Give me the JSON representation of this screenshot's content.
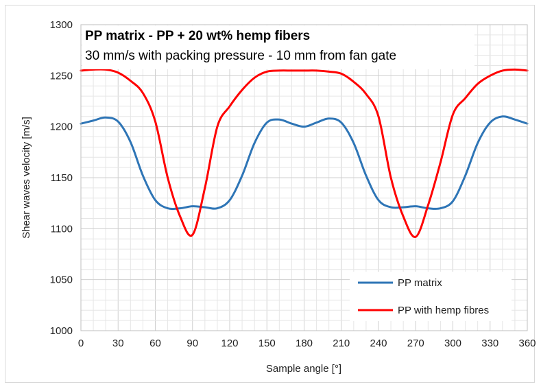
{
  "chart_data": {
    "type": "line",
    "title": "PP matrix - PP + 20 wt% hemp fibers",
    "subtitle": "30 mm/s with packing pressure - 10 mm from fan gate",
    "xlabel": "Sample angle [°]",
    "ylabel": "Shear waves velocity [m/s]",
    "xlim": [
      0,
      360
    ],
    "ylim": [
      1000,
      1300
    ],
    "xticks": [
      0,
      30,
      60,
      90,
      120,
      150,
      180,
      210,
      240,
      270,
      300,
      330,
      360
    ],
    "yticks": [
      1000,
      1050,
      1100,
      1150,
      1200,
      1250,
      1300
    ],
    "grid": true,
    "legend_position": "bottom-right",
    "series": [
      {
        "name": "PP matrix",
        "color": "#2e75b6",
        "x": [
          0,
          10,
          20,
          30,
          40,
          50,
          60,
          70,
          80,
          90,
          100,
          110,
          120,
          130,
          140,
          150,
          160,
          170,
          180,
          190,
          200,
          210,
          220,
          230,
          240,
          250,
          260,
          270,
          280,
          290,
          300,
          310,
          320,
          330,
          340,
          350,
          360
        ],
        "y": [
          1203,
          1206,
          1209,
          1205,
          1185,
          1152,
          1128,
          1120,
          1120,
          1122,
          1121,
          1120,
          1128,
          1152,
          1184,
          1204,
          1207,
          1203,
          1200,
          1204,
          1208,
          1204,
          1184,
          1152,
          1128,
          1121,
          1121,
          1122,
          1120,
          1120,
          1127,
          1152,
          1184,
          1204,
          1210,
          1207,
          1203
        ]
      },
      {
        "name": "PP with hemp fibres",
        "color": "#ff0000",
        "x": [
          0,
          10,
          20,
          30,
          40,
          50,
          60,
          70,
          80,
          90,
          100,
          110,
          120,
          130,
          140,
          150,
          160,
          170,
          180,
          190,
          200,
          210,
          220,
          230,
          240,
          250,
          260,
          270,
          280,
          290,
          300,
          310,
          320,
          330,
          340,
          350,
          360
        ],
        "y": [
          1255,
          1256,
          1256,
          1253,
          1245,
          1233,
          1205,
          1150,
          1112,
          1094,
          1140,
          1200,
          1220,
          1236,
          1248,
          1254,
          1255,
          1255,
          1255,
          1255,
          1254,
          1252,
          1244,
          1232,
          1210,
          1150,
          1112,
          1092,
          1123,
          1165,
          1212,
          1228,
          1242,
          1250,
          1255,
          1256,
          1255
        ]
      }
    ]
  }
}
